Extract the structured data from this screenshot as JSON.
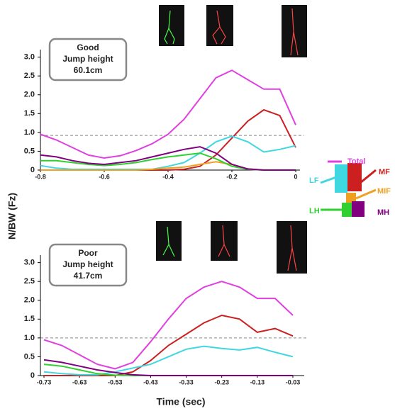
{
  "chart_data": [
    {
      "type": "line",
      "annotation": [
        "Good",
        "Jump height",
        "60.1cm"
      ],
      "ylabel": "N/BW (Fz)",
      "x": [
        -0.8,
        -0.75,
        -0.7,
        -0.65,
        -0.6,
        -0.55,
        -0.5,
        -0.45,
        -0.4,
        -0.35,
        -0.3,
        -0.25,
        -0.2,
        -0.15,
        -0.1,
        -0.05,
        0
      ],
      "series": [
        {
          "name": "Total",
          "color": "#e040e0",
          "values": [
            0.95,
            0.8,
            0.6,
            0.4,
            0.32,
            0.38,
            0.52,
            0.7,
            0.95,
            1.35,
            1.9,
            2.45,
            2.65,
            2.4,
            2.15,
            2.15,
            1.2
          ]
        },
        {
          "name": "MF",
          "color": "#cc2020",
          "values": [
            0,
            0,
            0,
            0,
            0,
            0,
            0,
            0,
            0,
            0.02,
            0.1,
            0.4,
            0.85,
            1.3,
            1.6,
            1.45,
            0.6
          ]
        },
        {
          "name": "LF",
          "color": "#40d8e0",
          "values": [
            0.12,
            0.05,
            0.02,
            0.02,
            0.02,
            0.02,
            0.02,
            0.02,
            0.1,
            0.2,
            0.45,
            0.75,
            0.9,
            0.75,
            0.48,
            0.55,
            0.65
          ]
        },
        {
          "name": "MIF",
          "color": "#f0a020",
          "values": [
            0,
            0,
            0,
            0,
            0,
            0,
            0,
            0.02,
            0.05,
            0.08,
            0.15,
            0.22,
            0.15,
            0.03,
            0,
            0,
            0
          ]
        },
        {
          "name": "LH",
          "color": "#30d030",
          "values": [
            0.25,
            0.25,
            0.2,
            0.15,
            0.12,
            0.15,
            0.2,
            0.28,
            0.35,
            0.4,
            0.45,
            0.3,
            0.1,
            0.02,
            0,
            0,
            0
          ]
        },
        {
          "name": "MH",
          "color": "#800080",
          "values": [
            0.4,
            0.35,
            0.25,
            0.18,
            0.15,
            0.2,
            0.25,
            0.35,
            0.45,
            0.55,
            0.62,
            0.45,
            0.15,
            0.03,
            0,
            0,
            0
          ]
        }
      ],
      "reference_line": 0.92,
      "xlim": [
        -0.8,
        0
      ],
      "xticks": [
        -0.8,
        -0.6,
        -0.4,
        -0.2,
        0
      ],
      "ylim": [
        0,
        3.2
      ],
      "yticks": [
        0,
        0.5,
        {
          "value": 1,
          "label": "1.0"
        },
        1.5,
        {
          "value": 2,
          "label": "2.0"
        },
        2.5,
        {
          "value": 3,
          "label": "3.0"
        }
      ]
    },
    {
      "type": "line",
      "annotation": [
        "Poor",
        "Jump height",
        "41.7cm"
      ],
      "xlabel": "Time (sec)",
      "x": [
        -0.73,
        -0.68,
        -0.63,
        -0.58,
        -0.53,
        -0.48,
        -0.43,
        -0.38,
        -0.33,
        -0.28,
        -0.23,
        -0.18,
        -0.13,
        -0.08,
        -0.03
      ],
      "series": [
        {
          "name": "Total",
          "color": "#e040e0",
          "values": [
            0.95,
            0.8,
            0.55,
            0.3,
            0.18,
            0.35,
            0.9,
            1.5,
            2.05,
            2.35,
            2.5,
            2.35,
            2.05,
            2.05,
            1.6
          ]
        },
        {
          "name": "MF",
          "color": "#cc2020",
          "values": [
            0,
            0,
            0,
            0,
            0,
            0.1,
            0.4,
            0.8,
            1.1,
            1.4,
            1.6,
            1.5,
            1.15,
            1.25,
            1.05
          ]
        },
        {
          "name": "LF",
          "color": "#40d8e0",
          "values": [
            0.1,
            0.05,
            0.02,
            0.02,
            0.1,
            0.2,
            0.3,
            0.5,
            0.7,
            0.78,
            0.72,
            0.68,
            0.75,
            0.62,
            0.5
          ]
        },
        {
          "name": "LH",
          "color": "#30d030",
          "values": [
            0.3,
            0.25,
            0.15,
            0.05,
            0.01,
            0,
            0,
            0,
            0,
            0,
            0,
            0,
            0,
            0,
            0
          ]
        },
        {
          "name": "MH",
          "color": "#800080",
          "values": [
            0.42,
            0.35,
            0.25,
            0.15,
            0.08,
            0.02,
            0,
            0,
            0,
            0,
            0,
            0,
            0,
            0,
            0
          ]
        }
      ],
      "reference_line": 1,
      "xlim": [
        -0.74,
        -0.01
      ],
      "xticks": [
        -0.73,
        -0.63,
        -0.53,
        -0.43,
        -0.33,
        -0.23,
        -0.13,
        -0.03
      ],
      "ylim": [
        0,
        3.2
      ],
      "yticks": [
        0,
        0.5,
        {
          "value": 1,
          "label": "1.0"
        },
        1.5,
        {
          "value": 2,
          "label": "2.0"
        },
        2.5,
        {
          "value": 3,
          "label": "3.0"
        }
      ]
    }
  ]
}
